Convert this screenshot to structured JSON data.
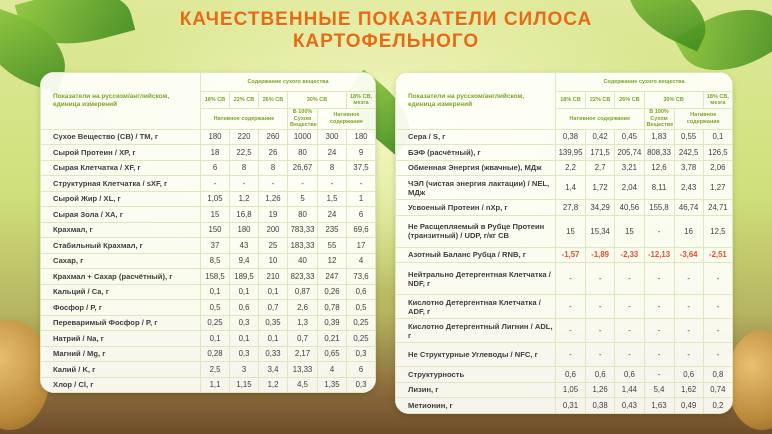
{
  "title_line1": "КАЧЕСТВЕННЫЕ ПОКАЗАТЕЛИ СИЛОСА",
  "title_line2": "КАРТОФЕЛЬНОГО",
  "header": {
    "indicator": "Показатели на русском/английском, единица измерений",
    "dry_matter": "Содержание сухого вещества",
    "cols": [
      "18% СВ",
      "22% СВ",
      "26% СВ",
      "30% СВ",
      "18% СВ, мезга"
    ],
    "native": "Нативное содержание",
    "dm100": "В 100% Сухом Веществе"
  },
  "colors": {
    "title": "#ea6a12",
    "header_text": "#7ba42a",
    "negative": "#e6502a"
  },
  "left_table": [
    {
      "name": "Сухое Вещество (СВ) / ТМ, г",
      "values": [
        "180",
        "220",
        "260",
        "1000",
        "300",
        "180"
      ]
    },
    {
      "name": "Сырой Протеин / ХР, г",
      "values": [
        "18",
        "22,5",
        "26",
        "80",
        "24",
        "9"
      ]
    },
    {
      "name": "Сырая Клетчатка / XF, г",
      "values": [
        "6",
        "8",
        "8",
        "26,67",
        "8",
        "37,5"
      ]
    },
    {
      "name": "Структурная Клетчатка / sXF, г",
      "values": [
        "-",
        "-",
        "-",
        "-",
        "-",
        "-"
      ]
    },
    {
      "name": "Сырой Жир / XL, г",
      "values": [
        "1,05",
        "1,2",
        "1,26",
        "5",
        "1,5",
        "1"
      ]
    },
    {
      "name": "Сырая Зола / ХА, г",
      "values": [
        "15",
        "16,8",
        "19",
        "80",
        "24",
        "6"
      ]
    },
    {
      "name": "Крахмал, г",
      "values": [
        "150",
        "180",
        "200",
        "783,33",
        "235",
        "69,6"
      ]
    },
    {
      "name": "Стабильный Крахмал, г",
      "values": [
        "37",
        "43",
        "25",
        "183,33",
        "55",
        "17"
      ]
    },
    {
      "name": "Сахар, г",
      "values": [
        "8,5",
        "9,4",
        "10",
        "40",
        "12",
        "4"
      ]
    },
    {
      "name": "Крахмал + Сахар (расчётный), г",
      "values": [
        "158,5",
        "189,5",
        "210",
        "823,33",
        "247",
        "73,6"
      ]
    },
    {
      "name": "Кальций / Ca, г",
      "values": [
        "0,1",
        "0,1",
        "0,1",
        "0,87",
        "0,26",
        "0,6"
      ]
    },
    {
      "name": "Фосфор / P, г",
      "values": [
        "0,5",
        "0,6",
        "0,7",
        "2,6",
        "0,78",
        "0,5"
      ]
    },
    {
      "name": "Переваримый Фосфор / P, г",
      "values": [
        "0,25",
        "0,3",
        "0,35",
        "1,3",
        "0,39",
        "0,25"
      ]
    },
    {
      "name": "Натрий / Na, г",
      "values": [
        "0,1",
        "0,1",
        "0,1",
        "0,7",
        "0,21",
        "0,25"
      ]
    },
    {
      "name": "Магний / Mg, г",
      "values": [
        "0,28",
        "0,3",
        "0,33",
        "2,17",
        "0,65",
        "0,3"
      ]
    },
    {
      "name": "Калий / K, г",
      "values": [
        "2,5",
        "3",
        "3,4",
        "13,33",
        "4",
        "6"
      ]
    },
    {
      "name": "Хлор / Cl, г",
      "values": [
        "1,1",
        "1,15",
        "1,2",
        "4,5",
        "1,35",
        "0,3"
      ]
    }
  ],
  "right_table": [
    {
      "name": "Сера / S, г",
      "values": [
        "0,38",
        "0,42",
        "0,45",
        "1,83",
        "0,55",
        "0,1"
      ]
    },
    {
      "name": "БЭФ (расчётный), г",
      "values": [
        "139,95",
        "171,5",
        "205,74",
        "808,33",
        "242,5",
        "126,5"
      ]
    },
    {
      "name": "Обменная Энергия (жвачные), МДж",
      "values": [
        "2,2",
        "2,7",
        "3,21",
        "12,6",
        "3,78",
        "2,06"
      ]
    },
    {
      "name": "ЧЭЛ (чистая энергия лактации) / NEL, МДж",
      "values": [
        "1,4",
        "1,72",
        "2,04",
        "8,11",
        "2,43",
        "1,27"
      ]
    },
    {
      "name": "Усвоеный Протеин / nXp, г",
      "values": [
        "27,8",
        "34,29",
        "40,56",
        "155,8",
        "46,74",
        "24,71"
      ]
    },
    {
      "name": "Не Расщепляемый в Рубце Протеин (транзитный) / UDP, г/кг СВ",
      "values": [
        "15",
        "15,34",
        "15",
        "-",
        "16",
        "12,5"
      ]
    },
    {
      "name": "Азотный Баланс Рубца / RNB, г",
      "values": [
        "-1,57",
        "-1,89",
        "-2,33",
        "-12,13",
        "-3,64",
        "-2,51"
      ],
      "negative": true
    },
    {
      "name": "Нейтрально Детергентная Клетчатка / NDF, г",
      "values": [
        "-",
        "-",
        "-",
        "-",
        "-",
        "-"
      ]
    },
    {
      "name": "Кислотно Детергентная Клетчатка / ADF, г",
      "values": [
        "-",
        "-",
        "-",
        "-",
        "-",
        "-"
      ]
    },
    {
      "name": "Кислотно Детергентный Лигнин / ADL, г",
      "values": [
        "-",
        "-",
        "-",
        "-",
        "-",
        "-"
      ]
    },
    {
      "name": "Не Структурные Углеводы / NFC, г",
      "values": [
        "-",
        "-",
        "-",
        "-",
        "-",
        "-"
      ]
    },
    {
      "name": "Структурность",
      "values": [
        "0,6",
        "0,6",
        "0,6",
        "-",
        "0,6",
        "0,8"
      ]
    },
    {
      "name": "Лизин, г",
      "values": [
        "1,05",
        "1,26",
        "1,44",
        "5,4",
        "1,62",
        "0,74"
      ]
    },
    {
      "name": "Метионин, г",
      "values": [
        "0,31",
        "0,38",
        "0,43",
        "1,63",
        "0,49",
        "0,2"
      ]
    }
  ]
}
